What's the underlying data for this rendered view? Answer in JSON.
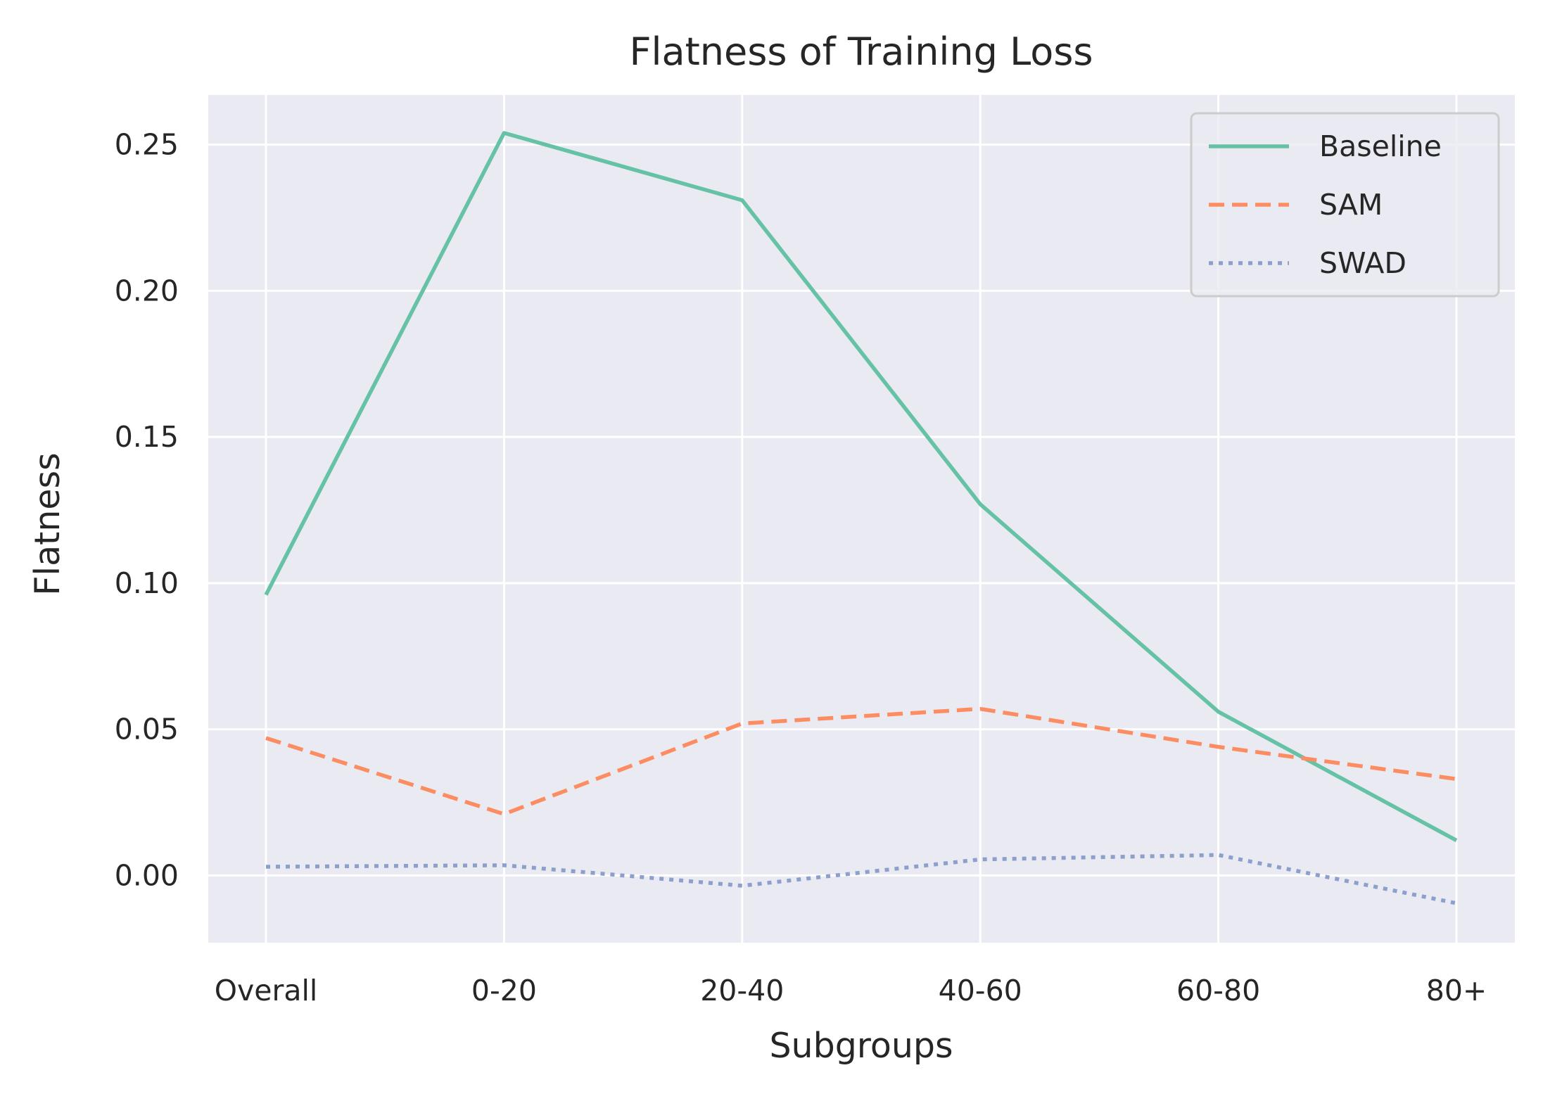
{
  "chart_data": {
    "type": "line",
    "title": "Flatness of Training Loss",
    "xlabel": "Subgroups",
    "ylabel": "Flatness",
    "categories": [
      "Overall",
      "0-20",
      "20-40",
      "40-60",
      "60-80",
      "80+"
    ],
    "ylim": [
      -0.023,
      0.267
    ],
    "yticks": [
      0.0,
      0.05,
      0.1,
      0.15,
      0.2,
      0.25
    ],
    "ytick_labels": [
      "0.00",
      "0.05",
      "0.10",
      "0.15",
      "0.20",
      "0.25"
    ],
    "grid": true,
    "legend_position": "top-right",
    "series": [
      {
        "name": "Baseline",
        "values": [
          0.096,
          0.254,
          0.231,
          0.127,
          0.056,
          0.012
        ],
        "color": "#66c2a5",
        "style": "solid"
      },
      {
        "name": "SAM",
        "values": [
          0.047,
          0.021,
          0.052,
          0.057,
          0.044,
          0.033
        ],
        "color": "#fc8d62",
        "style": "dashed"
      },
      {
        "name": "SWAD",
        "values": [
          0.003,
          0.0035,
          -0.0035,
          0.0055,
          0.007,
          -0.0095
        ],
        "color": "#8da0cb",
        "style": "dotted"
      }
    ]
  }
}
